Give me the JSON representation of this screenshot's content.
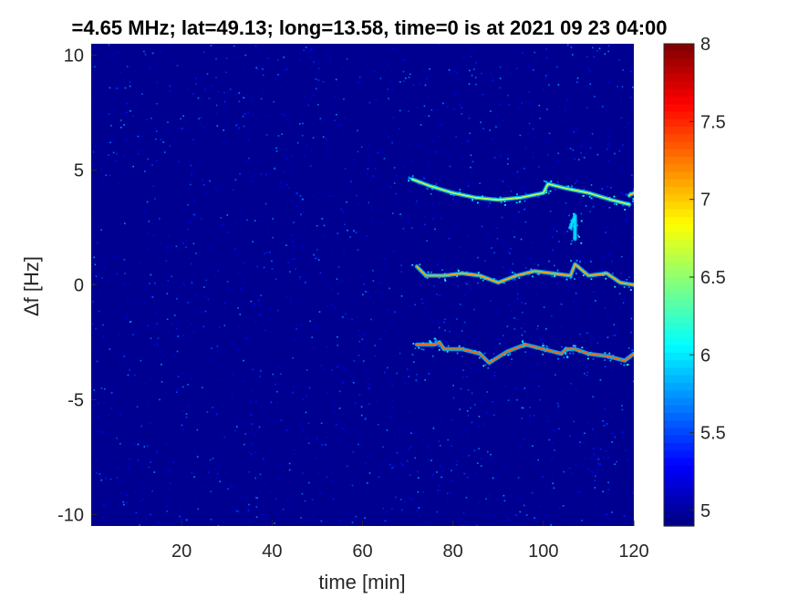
{
  "chart_data": {
    "type": "heatmap",
    "title": "=4.65 MHz;  lat=49.13; long=13.58, time=0 is at 2021 09 23 04:00",
    "xlabel": "time [min]",
    "ylabel": "Δf [Hz]",
    "xlim": [
      0,
      120
    ],
    "ylim": [
      -10.5,
      10.5
    ],
    "xticks": [
      20,
      40,
      60,
      80,
      100,
      120
    ],
    "yticks": [
      10,
      5,
      0,
      -5,
      -10
    ],
    "grid": false,
    "colorbar": {
      "clim": [
        4.9,
        8
      ],
      "ticks": [
        "8",
        "7.5",
        "7",
        "6.5",
        "6",
        "5.5",
        "5"
      ],
      "tick_values": [
        8,
        7.5,
        7,
        6.5,
        6,
        5.5,
        5
      ],
      "colormap": "jet"
    },
    "background_level": 4.95,
    "traces": [
      {
        "name": "",
        "level": 6.6,
        "points": [
          [
            71,
            4.6
          ],
          [
            75,
            4.3
          ],
          [
            80,
            4.0
          ],
          [
            85,
            3.8
          ],
          [
            90,
            3.7
          ],
          [
            95,
            3.8
          ],
          [
            100,
            4.0
          ],
          [
            101,
            4.4
          ],
          [
            105,
            4.2
          ],
          [
            110,
            4.0
          ],
          [
            115,
            3.7
          ],
          [
            119,
            3.5
          ]
        ]
      },
      {
        "name": "",
        "level": 7.1,
        "points": [
          [
            72,
            0.8
          ],
          [
            74,
            0.4
          ],
          [
            78,
            0.4
          ],
          [
            82,
            0.5
          ],
          [
            86,
            0.4
          ],
          [
            90,
            0.1
          ],
          [
            94,
            0.4
          ],
          [
            98,
            0.6
          ],
          [
            102,
            0.5
          ],
          [
            106,
            0.4
          ],
          [
            107,
            0.9
          ],
          [
            110,
            0.4
          ],
          [
            114,
            0.5
          ],
          [
            117,
            0.1
          ],
          [
            120,
            0.0
          ]
        ]
      },
      {
        "name": "",
        "level": 7.3,
        "points": [
          [
            72,
            -2.6
          ],
          [
            76,
            -2.6
          ],
          [
            77,
            -2.5
          ],
          [
            78,
            -2.8
          ],
          [
            82,
            -2.8
          ],
          [
            86,
            -3.0
          ],
          [
            88,
            -3.4
          ],
          [
            92,
            -2.9
          ],
          [
            96,
            -2.6
          ],
          [
            100,
            -2.8
          ],
          [
            104,
            -3.0
          ],
          [
            105,
            -2.8
          ],
          [
            107,
            -2.8
          ],
          [
            110,
            -3.0
          ],
          [
            114,
            -3.1
          ],
          [
            118,
            -3.3
          ],
          [
            120,
            -3.0
          ]
        ]
      },
      {
        "name": "",
        "level": 7.0,
        "points": [
          [
            119,
            3.9
          ],
          [
            120,
            4.0
          ]
        ]
      },
      {
        "name": "",
        "level": 6.0,
        "points": [
          [
            106,
            2.5
          ],
          [
            107,
            3.0
          ],
          [
            107,
            2.0
          ]
        ]
      }
    ]
  }
}
